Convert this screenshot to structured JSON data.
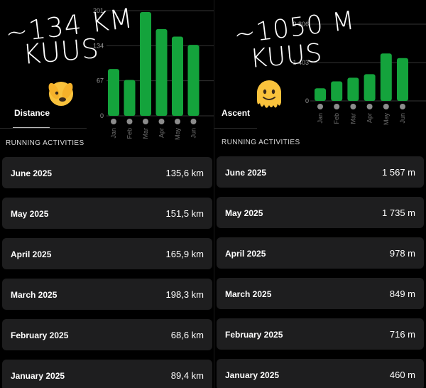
{
  "left": {
    "overlay_line1": "~134 KM",
    "overlay_line2": "KUUS",
    "emoji": "face-with-peeking-eye",
    "tab_label": "Distance",
    "section_header": "RUNNING ACTIVITIES",
    "chart_data": {
      "type": "bar",
      "categories": [
        "Jan",
        "Feb",
        "Mar",
        "Apr",
        "May",
        "Jun"
      ],
      "values": [
        89.4,
        68.6,
        198.3,
        165.9,
        151.5,
        135.6
      ],
      "y_ticks": [
        "0",
        "67",
        "134",
        "201"
      ],
      "ylim": [
        0,
        201
      ],
      "color": "#14a33c",
      "grid": true
    },
    "rows": [
      {
        "month": "June 2025",
        "value": "135,6 km"
      },
      {
        "month": "May 2025",
        "value": "151,5 km"
      },
      {
        "month": "April 2025",
        "value": "165,9 km"
      },
      {
        "month": "March 2025",
        "value": "198,3 km"
      },
      {
        "month": "February 2025",
        "value": "68,6 km"
      },
      {
        "month": "January 2025",
        "value": "89,4 km"
      }
    ]
  },
  "right": {
    "overlay_line1": "~1050 M",
    "overlay_line2": "KUUS",
    "emoji": "melting-face",
    "tab_label": "Ascent",
    "section_header": "RUNNING ACTIVITIES",
    "chart_data": {
      "type": "bar",
      "categories": [
        "Jan",
        "Feb",
        "Mar",
        "Apr",
        "May",
        "Jun"
      ],
      "values": [
        460,
        716,
        849,
        978,
        1735,
        1567
      ],
      "y_ticks": [
        "0",
        "1 403",
        "2 806"
      ],
      "ylim": [
        0,
        2806
      ],
      "color": "#14a33c",
      "grid": true
    },
    "rows": [
      {
        "month": "June 2025",
        "value": "1 567 m"
      },
      {
        "month": "May 2025",
        "value": "1 735 m"
      },
      {
        "month": "April 2025",
        "value": "978 m"
      },
      {
        "month": "March 2025",
        "value": "849 m"
      },
      {
        "month": "February 2025",
        "value": "716 m"
      },
      {
        "month": "January 2025",
        "value": "460 m"
      }
    ]
  },
  "colors": {
    "background": "#000000",
    "row_background": "#1e1e1f",
    "bar": "#14a33c",
    "dot": "#8c8c8c"
  }
}
